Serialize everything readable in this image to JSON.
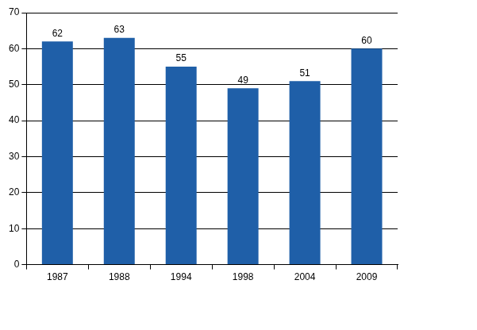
{
  "chart_data": {
    "type": "bar",
    "categories": [
      "1987",
      "1988",
      "1994",
      "1998",
      "2004",
      "2009"
    ],
    "values": [
      62,
      63,
      55,
      49,
      51,
      60
    ],
    "color": "#1f5fa8",
    "ylim": [
      0,
      70
    ],
    "yticks": [
      0,
      10,
      20,
      30,
      40,
      50,
      60,
      70
    ],
    "grid": true,
    "data_labels": true
  }
}
